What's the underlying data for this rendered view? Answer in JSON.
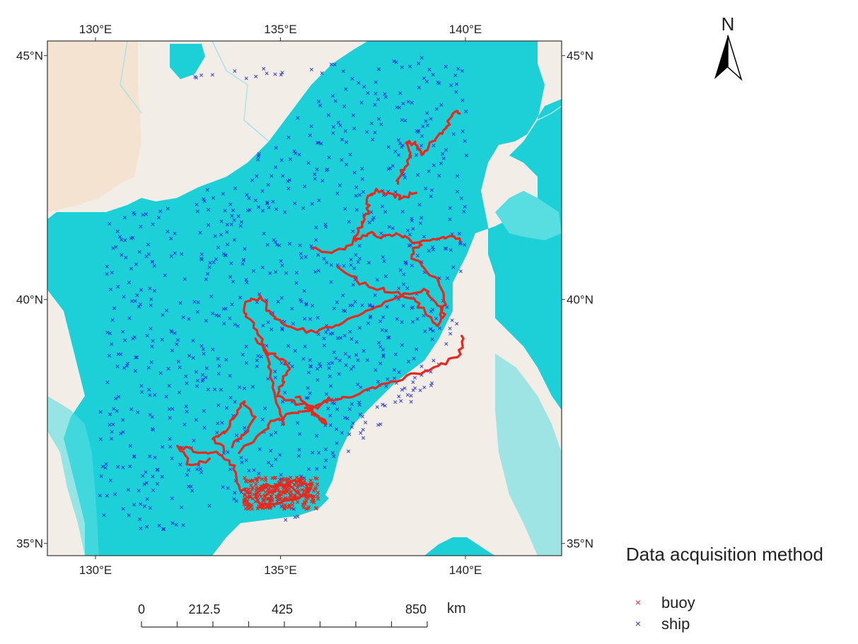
{
  "map": {
    "lon_ticks": [
      130,
      135,
      140
    ],
    "lat_ticks": [
      35,
      40,
      45
    ],
    "lon_tick_labels": [
      "130°E",
      "135°E",
      "140°E"
    ],
    "lat_tick_labels": [
      "35°N",
      "40°N",
      "45°N"
    ],
    "extent": {
      "lon": [
        128.7,
        142.6
      ],
      "lat": [
        34.75,
        45.3
      ]
    },
    "colors": {
      "sea": "#1dcfd6",
      "land": "#f3ede7",
      "land_west": "#f4e3d1",
      "coast_shallow": "#58dde1",
      "river": "#a9e4ea"
    }
  },
  "north_arrow": {
    "label": "N"
  },
  "scale_bar": {
    "labels": [
      "0",
      "212.5",
      "425",
      "850"
    ],
    "unit": "km"
  },
  "legend": {
    "title": "Data acquisition method",
    "items": [
      {
        "label": "buoy",
        "marker": "×",
        "color": "#e8281e"
      },
      {
        "label": "ship",
        "marker": "×",
        "color": "#2430e0"
      }
    ]
  }
}
